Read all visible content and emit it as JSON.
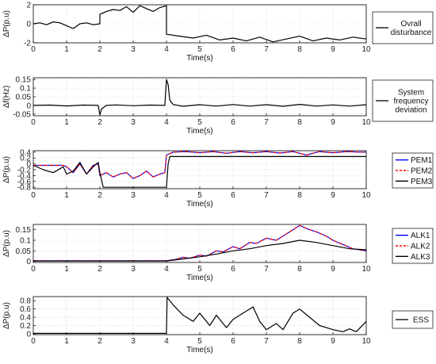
{
  "chart_data": [
    {
      "type": "line",
      "xlabel": "Time(s)",
      "ylabel": "ΔP(p.u)",
      "xlim": [
        0,
        10
      ],
      "ylim": [
        -2,
        2
      ],
      "xticks": [
        "0",
        "1",
        "2",
        "3",
        "4",
        "5",
        "6",
        "7",
        "8",
        "9",
        "10"
      ],
      "yticks": [
        -2,
        0,
        2
      ],
      "ytick_labels": [
        "-2",
        "0",
        "2"
      ],
      "grid": true,
      "legend_position": "right",
      "series": [
        {
          "name": "Ovrall disturbance",
          "legend_lines": [
            "Ovrall",
            "disturbance"
          ],
          "color": "#000000",
          "dash": "",
          "x": [
            0,
            0.2,
            0.4,
            0.6,
            0.8,
            1.0,
            1.2,
            1.4,
            1.6,
            1.8,
            2.0,
            2.0,
            2.2,
            2.4,
            2.6,
            2.8,
            3.0,
            3.2,
            3.4,
            3.6,
            3.8,
            4.0,
            4.0,
            4.4,
            4.8,
            5.2,
            5.6,
            6.0,
            6.4,
            6.8,
            7.2,
            7.6,
            8.0,
            8.4,
            8.8,
            9.2,
            9.6,
            10.0
          ],
          "y": [
            0,
            0.1,
            -0.1,
            0.2,
            0.1,
            -0.2,
            -0.5,
            0,
            0.1,
            -0.1,
            0,
            1.0,
            1.3,
            1.5,
            1.4,
            1.8,
            1.2,
            1.9,
            1.6,
            1.3,
            1.7,
            1.9,
            -1.1,
            -1.3,
            -1.5,
            -1.2,
            -1.7,
            -1.5,
            -1.8,
            -1.4,
            -1.9,
            -1.6,
            -1.3,
            -1.8,
            -1.5,
            -1.7,
            -1.4,
            -1.6
          ]
        }
      ]
    },
    {
      "type": "line",
      "xlabel": "Time(s)",
      "ylabel": "Δf(Hz)",
      "xlim": [
        0,
        10
      ],
      "ylim": [
        -0.06,
        0.16
      ],
      "xticks": [
        "0",
        "1",
        "2",
        "3",
        "4",
        "5",
        "6",
        "7",
        "8",
        "9",
        "10"
      ],
      "yticks": [
        -0.05,
        0,
        0.05,
        0.1,
        0.15
      ],
      "ytick_labels": [
        "-0.05",
        "0",
        "0.05",
        "0.1",
        "0.15"
      ],
      "grid": true,
      "legend_position": "right",
      "series": [
        {
          "name": "System frequency deviation",
          "legend_lines": [
            "System",
            "frequency",
            "deviation"
          ],
          "color": "#000000",
          "dash": "",
          "x": [
            0,
            0.5,
            1.0,
            1.5,
            1.95,
            2.0,
            2.05,
            2.2,
            2.5,
            3.0,
            3.5,
            3.95,
            4.0,
            4.05,
            4.1,
            4.2,
            4.5,
            5.0,
            5.5,
            6.0,
            6.5,
            7.0,
            7.5,
            8.0,
            8.5,
            9.0,
            9.5,
            10.0
          ],
          "y": [
            0,
            0.002,
            -0.003,
            0.002,
            0,
            -0.055,
            -0.02,
            0,
            0.003,
            -0.002,
            0.002,
            0,
            0.15,
            0.12,
            0.03,
            0.005,
            -0.005,
            0.004,
            -0.004,
            0.005,
            -0.004,
            0.004,
            -0.005,
            0.006,
            -0.004,
            0.003,
            -0.004,
            0.004
          ]
        }
      ]
    },
    {
      "type": "line",
      "xlabel": "Time(s)",
      "ylabel": "ΔP(p.u)",
      "xlim": [
        0,
        10
      ],
      "ylim": [
        -0.85,
        0.45
      ],
      "xticks": [
        "0",
        "1",
        "2",
        "3",
        "4",
        "5",
        "6",
        "7",
        "8",
        "9",
        "10"
      ],
      "yticks": [
        -0.8,
        -0.6,
        -0.4,
        -0.2,
        0,
        0.2,
        0.4
      ],
      "ytick_labels": [
        "-0.8",
        "-0.6",
        "-0.4",
        "-0.2",
        "0",
        "0.2",
        "0.4"
      ],
      "grid": true,
      "legend_position": "right",
      "series": [
        {
          "name": "PEM1",
          "legend_lines": [
            "PEM1"
          ],
          "color": "#0000ff",
          "dash": "",
          "x": [
            0,
            0.5,
            0.9,
            1.0,
            1.2,
            1.4,
            1.6,
            1.8,
            1.95,
            2.0,
            2.2,
            2.4,
            2.6,
            2.8,
            3.0,
            3.2,
            3.4,
            3.6,
            3.8,
            3.95,
            4.0,
            4.2,
            4.6,
            5.0,
            5.4,
            5.8,
            6.2,
            6.6,
            7.0,
            7.4,
            7.8,
            8.2,
            8.6,
            9.0,
            9.4,
            9.8,
            10.0
          ],
          "y": [
            -0.05,
            -0.05,
            -0.05,
            -0.1,
            -0.3,
            0,
            -0.35,
            -0.05,
            0,
            -0.4,
            -0.3,
            -0.45,
            -0.35,
            -0.3,
            -0.5,
            -0.4,
            -0.25,
            -0.45,
            -0.35,
            -0.3,
            0.3,
            0.4,
            0.42,
            0.38,
            0.42,
            0.36,
            0.42,
            0.38,
            0.42,
            0.37,
            0.42,
            0.3,
            0.42,
            0.38,
            0.42,
            0.4,
            0.4
          ]
        },
        {
          "name": "PEM2",
          "legend_lines": [
            "PEM2"
          ],
          "color": "#ff0000",
          "dash": "4,3",
          "x": [
            0,
            0.5,
            0.9,
            1.0,
            1.2,
            1.4,
            1.6,
            1.8,
            1.95,
            2.0,
            2.2,
            2.4,
            2.6,
            2.8,
            3.0,
            3.2,
            3.4,
            3.6,
            3.8,
            3.95,
            4.0,
            4.2,
            4.6,
            5.0,
            5.4,
            5.8,
            6.2,
            6.6,
            7.0,
            7.4,
            7.8,
            8.2,
            8.6,
            9.0,
            9.4,
            9.8,
            10.0
          ],
          "y": [
            -0.05,
            -0.05,
            -0.05,
            -0.1,
            -0.3,
            0,
            -0.35,
            -0.05,
            0,
            -0.4,
            -0.3,
            -0.45,
            -0.35,
            -0.3,
            -0.5,
            -0.4,
            -0.25,
            -0.45,
            -0.35,
            -0.3,
            0.3,
            0.4,
            0.42,
            0.38,
            0.42,
            0.36,
            0.42,
            0.38,
            0.42,
            0.37,
            0.42,
            0.3,
            0.42,
            0.38,
            0.42,
            0.4,
            0.4
          ]
        },
        {
          "name": "PEM3",
          "legend_lines": [
            "PEM3"
          ],
          "color": "#000000",
          "dash": "",
          "x": [
            0,
            0.3,
            0.6,
            0.9,
            1.0,
            1.2,
            1.4,
            1.6,
            1.8,
            1.95,
            2.0,
            2.1,
            4.0,
            4.05,
            4.1,
            10.0
          ],
          "y": [
            -0.05,
            -0.2,
            -0.3,
            -0.1,
            -0.35,
            -0.25,
            0.05,
            -0.35,
            -0.1,
            0.05,
            -0.3,
            -0.8,
            -0.8,
            0,
            0.25,
            0.25
          ]
        }
      ]
    },
    {
      "type": "line",
      "xlabel": "Time(s)",
      "ylabel": "ΔP(p.u)",
      "xlim": [
        0,
        10
      ],
      "ylim": [
        -0.005,
        0.175
      ],
      "xticks": [
        "0",
        "1",
        "2",
        "3",
        "4",
        "5",
        "6",
        "7",
        "8",
        "9",
        "10"
      ],
      "yticks": [
        0,
        0.05,
        0.1,
        0.15
      ],
      "ytick_labels": [
        "0",
        "0.05",
        "0.1",
        "0.15"
      ],
      "grid": true,
      "legend_position": "right",
      "series": [
        {
          "name": "ALK1",
          "legend_lines": [
            "ALK1"
          ],
          "color": "#0000ff",
          "dash": "",
          "x": [
            0,
            4.0,
            4.3,
            4.5,
            4.7,
            5.0,
            5.2,
            5.5,
            5.7,
            6.0,
            6.2,
            6.5,
            6.7,
            7.0,
            7.3,
            7.6,
            7.8,
            8.0,
            8.3,
            8.5,
            8.8,
            9.0,
            9.3,
            9.6,
            10.0
          ],
          "y": [
            0.003,
            0.003,
            0.01,
            0.02,
            0.015,
            0.03,
            0.025,
            0.05,
            0.045,
            0.07,
            0.06,
            0.09,
            0.085,
            0.11,
            0.1,
            0.13,
            0.15,
            0.17,
            0.15,
            0.14,
            0.12,
            0.1,
            0.08,
            0.06,
            0.05
          ]
        },
        {
          "name": "ALK2",
          "legend_lines": [
            "ALK2"
          ],
          "color": "#ff0000",
          "dash": "4,3",
          "x": [
            0,
            4.0,
            4.3,
            4.5,
            4.7,
            5.0,
            5.2,
            5.5,
            5.7,
            6.0,
            6.2,
            6.5,
            6.7,
            7.0,
            7.3,
            7.6,
            7.8,
            8.0,
            8.3,
            8.5,
            8.8,
            9.0,
            9.3,
            9.6,
            10.0
          ],
          "y": [
            0.003,
            0.003,
            0.01,
            0.02,
            0.015,
            0.03,
            0.025,
            0.05,
            0.045,
            0.07,
            0.06,
            0.09,
            0.085,
            0.11,
            0.1,
            0.13,
            0.15,
            0.17,
            0.15,
            0.14,
            0.12,
            0.1,
            0.08,
            0.06,
            0.05
          ]
        },
        {
          "name": "ALK3",
          "legend_lines": [
            "ALK3"
          ],
          "color": "#000000",
          "dash": "",
          "x": [
            0,
            4.0,
            4.5,
            5.0,
            5.5,
            6.0,
            6.5,
            7.0,
            7.5,
            8.0,
            8.5,
            9.0,
            9.5,
            10.0
          ],
          "y": [
            0.002,
            0.002,
            0.012,
            0.022,
            0.035,
            0.05,
            0.06,
            0.075,
            0.085,
            0.1,
            0.09,
            0.075,
            0.06,
            0.055
          ]
        }
      ]
    },
    {
      "type": "line",
      "xlabel": "Time(s)",
      "ylabel": "ΔP(p.u)",
      "xlim": [
        0,
        10
      ],
      "ylim": [
        -0.02,
        0.9
      ],
      "xticks": [
        "0",
        "1",
        "2",
        "3",
        "4",
        "5",
        "6",
        "7",
        "8",
        "9",
        "10"
      ],
      "yticks": [
        0,
        0.2,
        0.4,
        0.6,
        0.8
      ],
      "ytick_labels": [
        "0",
        "0.2",
        "0.4",
        "0.6",
        "0.8"
      ],
      "grid": true,
      "legend_position": "right",
      "series": [
        {
          "name": "ESS",
          "legend_lines": [
            "ESS"
          ],
          "color": "#000000",
          "dash": "",
          "x": [
            0,
            4.0,
            4.02,
            4.2,
            4.5,
            4.8,
            5.0,
            5.3,
            5.5,
            5.8,
            6.0,
            6.3,
            6.6,
            6.8,
            7.0,
            7.3,
            7.5,
            7.8,
            8.0,
            8.3,
            8.6,
            8.8,
            9.0,
            9.3,
            9.5,
            9.7,
            10.0
          ],
          "y": [
            0.01,
            0.01,
            0.88,
            0.7,
            0.45,
            0.3,
            0.5,
            0.2,
            0.45,
            0.15,
            0.35,
            0.5,
            0.65,
            0.3,
            0.1,
            0.25,
            0.1,
            0.5,
            0.6,
            0.4,
            0.2,
            0.15,
            0.1,
            0.05,
            0.12,
            0.05,
            0.3
          ]
        }
      ]
    }
  ]
}
